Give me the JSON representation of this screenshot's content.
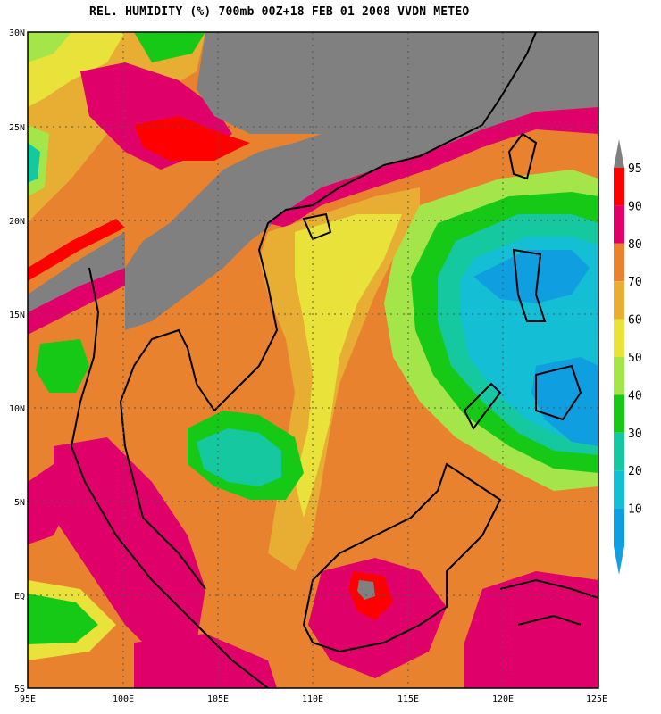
{
  "title": "REL. HUMIDITY (%) 700mb 00Z+18 FEB 01 2008 VVDN METEO",
  "colors": {
    "background_humidity": "#e9822e",
    "gray_no_data": "#808080",
    "coast": "#000000",
    "grid": "#555555"
  },
  "lat_labels": [
    "30N",
    "25N",
    "20N",
    "15N",
    "10N",
    "5N",
    "EQ",
    "5S"
  ],
  "lon_labels": [
    "95E",
    "100E",
    "105E",
    "110E",
    "115E",
    "120E",
    "125E"
  ],
  "legend": {
    "labels": [
      "95",
      "90",
      "80",
      "70",
      "60",
      "50",
      "40",
      "30",
      "20",
      "10"
    ],
    "colors": [
      "#fe0000",
      "#e0006a",
      "#e9822e",
      "#e8ad33",
      "#e8e23a",
      "#a4e64a",
      "#17c917",
      "#15c8a0",
      "#14bfd6",
      "#0f9ee0"
    ],
    "top_arrow_color": "#808080",
    "bottom_arrow_color": "#14a0e0"
  }
}
